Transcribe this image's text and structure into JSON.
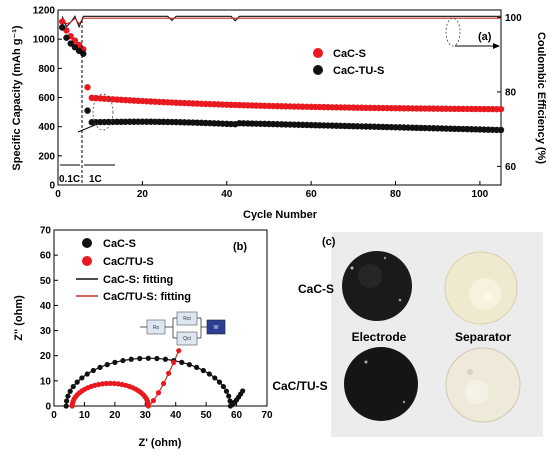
{
  "panel_a": {
    "label": "(a)",
    "legend": [
      "CaC-S",
      "CaC-TU-S"
    ],
    "rate_labels": [
      "0.1C",
      "1C"
    ],
    "colors": {
      "cac_s": "#e8191f",
      "cac_tu_s": "#111111",
      "ce_line": "#c0302b"
    }
  },
  "panel_b": {
    "label": "(b)",
    "legend": [
      "CaC-S",
      "CaC/TU-S",
      "CaC-S: fitting",
      "CaC/TU-S: fitting"
    ],
    "circuit": [
      "Rs",
      "Rct",
      "Qct",
      "W"
    ]
  },
  "panel_c": {
    "label": "(c)",
    "row_labels": [
      "CaC-S",
      "CaC/TU-S"
    ],
    "col_labels": [
      "Electrode",
      "Separator"
    ]
  },
  "chart_data": [
    {
      "type": "scatter",
      "id": "cycling",
      "xlabel": "Cycle Number",
      "ylabel": "Specific Capacity (mAh g⁻¹)",
      "y2label": "Coulombic Efficiency (%)",
      "xlim": [
        0,
        105
      ],
      "ylim": [
        0,
        1200
      ],
      "y2lim": [
        55,
        102
      ],
      "xticks": [
        0,
        20,
        40,
        60,
        80,
        100
      ],
      "yticks": [
        0,
        200,
        400,
        600,
        800,
        1000,
        1200
      ],
      "y2ticks": [
        60,
        80,
        100
      ],
      "series": [
        {
          "name": "CaC-S",
          "low_rate": [
            [
              1,
              1120
            ],
            [
              2,
              1060
            ],
            [
              3,
              1020
            ],
            [
              4,
              990
            ],
            [
              5,
              960
            ],
            [
              6,
              930
            ]
          ],
          "high_rate_start": [
            7,
            670
          ],
          "high_rate_range": [
            7,
            105
          ],
          "high_rate_values": [
            600,
            520
          ]
        },
        {
          "name": "CaC-TU-S",
          "low_rate": [
            [
              1,
              1080
            ],
            [
              2,
              1010
            ],
            [
              3,
              970
            ],
            [
              4,
              945
            ],
            [
              5,
              920
            ],
            [
              6,
              900
            ]
          ],
          "high_rate_start": [
            7,
            510
          ],
          "high_rate_range": [
            7,
            105
          ],
          "high_rate_values": [
            430,
            305
          ]
        }
      ],
      "coulombic_efficiency": {
        "typical": 100,
        "min": 97.5
      }
    },
    {
      "type": "line",
      "id": "nyquist",
      "xlabel": "Z' (ohm)",
      "ylabel": "Z'' (ohm)",
      "xlim": [
        0,
        70
      ],
      "ylim": [
        0,
        70
      ],
      "xticks": [
        0,
        10,
        20,
        30,
        40,
        50,
        60,
        70
      ],
      "yticks": [
        0,
        10,
        20,
        30,
        40,
        50,
        60,
        70
      ],
      "series": [
        {
          "name": "CaC-S",
          "semicircle": {
            "start": 4,
            "end": 58,
            "peak": 19
          },
          "tail_end": [
            62,
            6
          ]
        },
        {
          "name": "CaC/TU-S",
          "semicircle": {
            "start": 6,
            "end": 31,
            "peak": 9
          },
          "tail_end": [
            41,
            22
          ]
        }
      ]
    }
  ]
}
